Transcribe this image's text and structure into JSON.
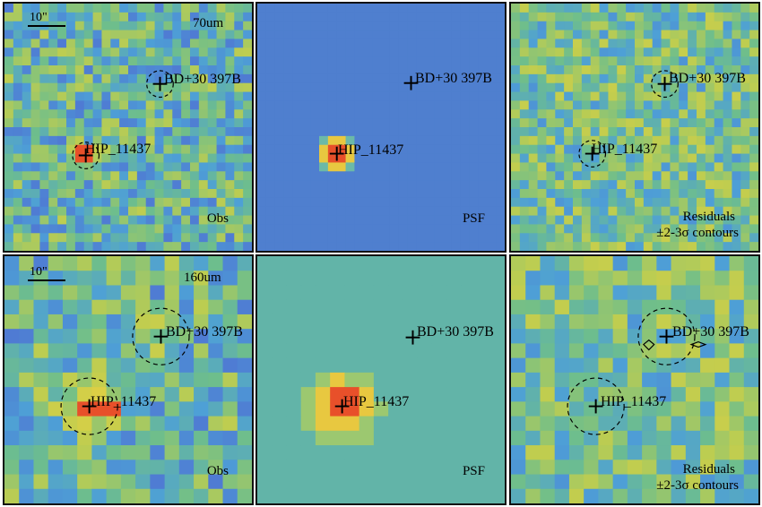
{
  "scale_label": "10\"",
  "bands": {
    "band_70": "70um",
    "band_160": "160um"
  },
  "sources": {
    "primary": "HIP_11437",
    "secondary": "BD+30 397B"
  },
  "panel_tags": {
    "obs": "Obs",
    "psf": "PSF",
    "residuals": "Residuals",
    "contours": "±2-3σ contours"
  },
  "colors": {
    "frame": "#111111",
    "low": "#3b2f8f",
    "mid": "#4f8fd6",
    "high": "#e8d040",
    "peak": "#e8502a"
  }
}
